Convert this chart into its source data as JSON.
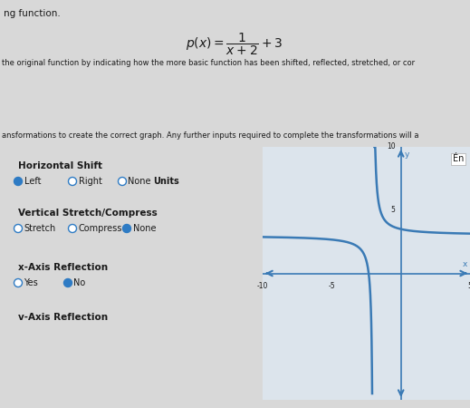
{
  "title_text": "ng function.",
  "formula_latex": "$p(x) = \\dfrac{1}{x+2} + 3$",
  "line1": "the original function by indicating how the more basic function has been shifted, reflected, stretched, or cor",
  "line2": "ansformations to create the correct graph. Any further inputs required to complete the transformations will a",
  "section_title1": "Horizontal Shift",
  "radio1_options": [
    "Left",
    "Right",
    "None"
  ],
  "radio1_selected": 0,
  "radio1_suffix": "Units",
  "section_title2": "Vertical Stretch/Compress",
  "radio2_options": [
    "Stretch",
    "Compress",
    "None"
  ],
  "radio2_selected": 2,
  "section_title3": "x-Axis Reflection",
  "radio3_options": [
    "Yes",
    "No"
  ],
  "radio3_selected": 1,
  "section_title4": "v-Axis Reflection",
  "bg_color": "#d8d8d8",
  "panel_bg": "#d4d4d8",
  "graph_bg": "#dce4ec",
  "graph_line_color": "#3a7ab5",
  "grid_color": "#b8c8d8",
  "axis_color": "#3a7ab5",
  "xlim": [
    -10,
    5
  ],
  "ylim": [
    -10,
    10
  ],
  "ena_label": "Én",
  "text_color": "#1a1a1a",
  "radio_fill_selected": "#2e7bc4",
  "radio_fill_unselected": "#ffffff",
  "radio_edge": "#2e7bc4"
}
